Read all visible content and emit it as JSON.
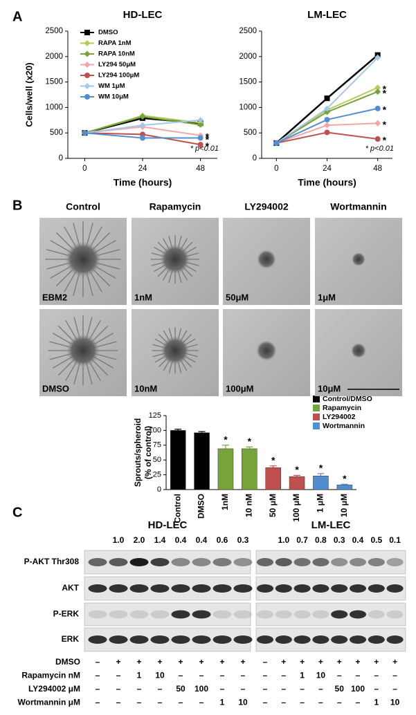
{
  "panel_labels": [
    "A",
    "B",
    "C"
  ],
  "chart_data": [
    {
      "type": "line",
      "title": "HD-LEC",
      "xlabel": "Time (hours)",
      "ylabel": "Cells/well (x20)",
      "x": [
        0,
        24,
        48
      ],
      "xlim": [
        -7,
        55
      ],
      "xticks": [
        0,
        24,
        48
      ],
      "ylim": [
        0,
        2500
      ],
      "yticks": [
        0,
        500,
        1000,
        1500,
        2000,
        2500
      ],
      "annotation": "* p<0.01",
      "legend": "upper left",
      "series": [
        {
          "name": "DMSO",
          "color": "#000000",
          "marker": "square",
          "values": [
            500,
            790,
            690
          ]
        },
        {
          "name": "RAPA 1nM",
          "color": "#b5cc5a",
          "marker": "diamond",
          "values": [
            500,
            840,
            700
          ]
        },
        {
          "name": "RAPA 10nM",
          "color": "#77a33b",
          "marker": "diamond",
          "values": [
            500,
            820,
            660
          ]
        },
        {
          "name": "LY294 50μM",
          "color": "#f4a6a6",
          "marker": "diamond",
          "values": [
            500,
            620,
            450
          ],
          "significance": "*"
        },
        {
          "name": "LY294 100μM",
          "color": "#c0504d",
          "marker": "circle",
          "values": [
            500,
            470,
            270
          ],
          "significance": "*"
        },
        {
          "name": "WM 1μM",
          "color": "#a6c8e8",
          "marker": "diamond",
          "values": [
            500,
            650,
            750
          ]
        },
        {
          "name": "WM 10μM",
          "color": "#4f8fd0",
          "marker": "circle",
          "values": [
            500,
            400,
            400
          ],
          "significance": "*"
        }
      ]
    },
    {
      "type": "line",
      "title": "LM-LEC",
      "xlabel": "Time (hours)",
      "x": [
        0,
        24,
        48
      ],
      "xlim": [
        -7,
        55
      ],
      "xticks": [
        0,
        24,
        48
      ],
      "ylim": [
        0,
        2500
      ],
      "yticks": [
        0,
        500,
        1000,
        1500,
        2000,
        2500
      ],
      "annotation": "* p<0.01",
      "series": [
        {
          "color": "#000000",
          "marker": "square",
          "values": [
            300,
            1180,
            2030
          ]
        },
        {
          "color": "#b5cc5a",
          "marker": "diamond",
          "values": [
            300,
            950,
            1390
          ],
          "significance": "*"
        },
        {
          "color": "#77a33b",
          "marker": "diamond",
          "values": [
            300,
            910,
            1310
          ],
          "significance": "*"
        },
        {
          "color": "#f4a6a6",
          "marker": "diamond",
          "values": [
            300,
            650,
            690
          ],
          "significance": "*"
        },
        {
          "color": "#c0504d",
          "marker": "circle",
          "values": [
            300,
            510,
            380
          ],
          "significance": "*"
        },
        {
          "color": "#a6c8e8",
          "marker": "diamond",
          "values": [
            300,
            980,
            1980
          ]
        },
        {
          "color": "#4f8fd0",
          "marker": "circle",
          "values": [
            300,
            760,
            980
          ],
          "significance": "*"
        }
      ]
    },
    {
      "type": "bar",
      "ylabel": [
        "Sprouts/spheroid",
        "(% of control)"
      ],
      "categories": [
        "Control",
        "DMSO",
        "1nM",
        "10 nM",
        "50 μM",
        "100 μM",
        "1 μM",
        "10 μM"
      ],
      "ylim": [
        0,
        125
      ],
      "yticks": [
        0,
        25,
        50,
        75,
        100,
        125
      ],
      "legend": "upper right",
      "significance": [
        null,
        null,
        "*",
        "*",
        "*",
        "*",
        "*",
        "*"
      ],
      "series": [
        {
          "name": "Control/DMSO",
          "color": "#000000",
          "values": [
            100,
            96,
            null,
            null,
            null,
            null,
            null,
            null
          ],
          "errors": [
            2,
            2,
            null,
            null,
            null,
            null,
            null,
            null
          ]
        },
        {
          "name": "Rapamycin",
          "color": "#77a33b",
          "values": [
            null,
            null,
            69,
            69,
            null,
            null,
            null,
            null
          ],
          "errors": [
            null,
            null,
            6,
            3,
            null,
            null,
            null,
            null
          ]
        },
        {
          "name": "LY294002",
          "color": "#c0504d",
          "values": [
            null,
            null,
            null,
            null,
            37,
            22,
            null,
            null
          ],
          "errors": [
            null,
            null,
            null,
            null,
            3,
            2,
            null,
            null
          ]
        },
        {
          "name": "Wortmannin",
          "color": "#4f8fd0",
          "values": [
            null,
            null,
            null,
            null,
            null,
            null,
            23,
            8
          ],
          "errors": [
            null,
            null,
            null,
            null,
            null,
            null,
            4,
            1
          ]
        }
      ]
    }
  ],
  "micrographs": {
    "columns": [
      "Control",
      "Rapamycin",
      "LY294002",
      "Wortmannin"
    ],
    "labels": [
      [
        "EBM2",
        "1nM",
        "50μM",
        "1μM"
      ],
      [
        "DMSO",
        "10nM",
        "100μM",
        "10μM"
      ]
    ]
  },
  "blots": {
    "panels": [
      {
        "title": "HD-LEC",
        "quant": [
          null,
          "1.0",
          "2.0",
          "1.4",
          "0.4",
          "0.4",
          "0.6",
          "0.3"
        ]
      },
      {
        "title": "LM-LEC",
        "quant": [
          null,
          "1.0",
          "0.7",
          "0.8",
          "0.3",
          "0.4",
          "0.5",
          "0.1"
        ]
      }
    ],
    "rows": [
      "P-AKT Thr308",
      "AKT",
      "P-ERK",
      "ERK"
    ],
    "treatments": [
      {
        "label": "DMSO",
        "cells": [
          "–",
          "+",
          "+",
          "+",
          "+",
          "+",
          "+",
          "+"
        ]
      },
      {
        "label": "Rapamycin nM",
        "cells": [
          "–",
          "–",
          "1",
          "10",
          "–",
          "–",
          "–",
          "–"
        ]
      },
      {
        "label": "LY294002 μM",
        "cells": [
          "–",
          "–",
          "–",
          "–",
          "50",
          "100",
          "–",
          "–"
        ]
      },
      {
        "label": "Wortmannin μM",
        "cells": [
          "–",
          "–",
          "–",
          "–",
          "–",
          "–",
          "1",
          "10"
        ]
      }
    ]
  }
}
